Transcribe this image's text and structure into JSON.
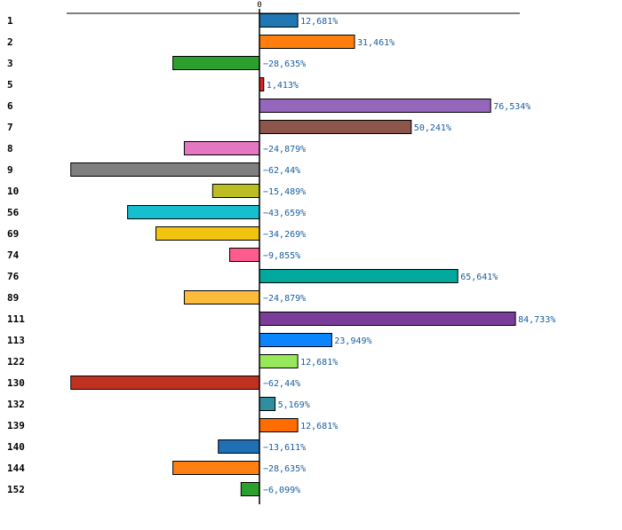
{
  "chart_data": {
    "type": "bar",
    "orientation": "horizontal",
    "title": "",
    "xlabel": "",
    "ylabel": "",
    "zero_tick_label": "0",
    "value_suffix": "%",
    "decimal_separator": ",",
    "categories": [
      "1",
      "2",
      "3",
      "5",
      "6",
      "7",
      "8",
      "9",
      "10",
      "56",
      "69",
      "74",
      "76",
      "89",
      "111",
      "113",
      "122",
      "130",
      "132",
      "139",
      "140",
      "144",
      "152"
    ],
    "values": [
      12.681,
      31.461,
      -28.635,
      1.413,
      76.534,
      50.241,
      -24.879,
      -62.44,
      -15.489,
      -43.659,
      -34.269,
      -9.855,
      65.641,
      -24.879,
      84.733,
      23.949,
      12.681,
      -62.44,
      5.169,
      12.681,
      -13.611,
      -28.635,
      -6.099
    ],
    "value_labels": [
      "12,681%",
      "31,461%",
      "−28,635%",
      "1,413%",
      "76,534%",
      "50,241%",
      "−24,879%",
      "−62,44%",
      "−15,489%",
      "−43,659%",
      "−34,269%",
      "−9,855%",
      "65,641%",
      "−24,879%",
      "84,733%",
      "23,949%",
      "12,681%",
      "−62,44%",
      "5,169%",
      "12,681%",
      "−13,611%",
      "−28,635%",
      "−6,099%"
    ],
    "colors": [
      "#1f77b4",
      "#ff7f0e",
      "#2ca02c",
      "#d62728",
      "#9467bd",
      "#8c564b",
      "#e377c2",
      "#7f7f7f",
      "#bcbd22",
      "#17becf",
      "#f1c40f",
      "#ff5c8d",
      "#00a89d",
      "#fbbc3c",
      "#7a3d99",
      "#0a84ff",
      "#98e85c",
      "#c0311f",
      "#2e8f9e",
      "#ff6d00",
      "#1f6fb4",
      "#ff8010",
      "#2ca02c"
    ],
    "xlim": [
      -64.0,
      86.5
    ],
    "grid": false,
    "legend": "none"
  }
}
